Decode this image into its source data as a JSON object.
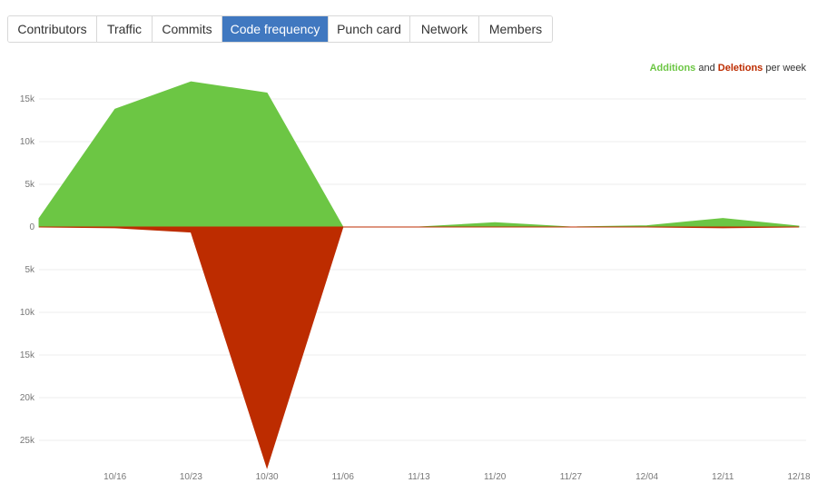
{
  "tabs": [
    {
      "label": "Contributors",
      "active": false
    },
    {
      "label": "Traffic",
      "active": false
    },
    {
      "label": "Commits",
      "active": false
    },
    {
      "label": "Code frequency",
      "active": true
    },
    {
      "label": "Punch card",
      "active": false
    },
    {
      "label": "Network",
      "active": false
    },
    {
      "label": "Members",
      "active": false
    }
  ],
  "legend": {
    "additions": "Additions",
    "and": "and",
    "deletions": "Deletions",
    "suffix": "per week"
  },
  "colors": {
    "additions": "#6cc644",
    "deletions": "#bd2c00",
    "active_tab": "#4078c0"
  },
  "chart_data": {
    "type": "area",
    "title": "",
    "xlabel": "",
    "ylabel": "",
    "x_ticks": [
      "10/16",
      "10/23",
      "10/30",
      "11/06",
      "11/13",
      "11/20",
      "11/27",
      "12/04",
      "12/11",
      "12/18"
    ],
    "y_ticks_positive": [
      "15k",
      "10k",
      "5k",
      "0"
    ],
    "y_ticks_negative": [
      "5k",
      "10k",
      "15k",
      "20k",
      "25k"
    ],
    "ylim": [
      -28000,
      15000
    ],
    "grid": true,
    "legend_position": "top-right",
    "series": [
      {
        "name": "Additions",
        "x": [
          "10/09",
          "10/16",
          "10/23",
          "10/30",
          "11/06",
          "11/13",
          "11/20",
          "11/27",
          "12/04",
          "12/11",
          "12/18"
        ],
        "values": [
          1000,
          13800,
          17000,
          15700,
          0,
          0,
          500,
          0,
          150,
          1000,
          100
        ]
      },
      {
        "name": "Deletions",
        "x": [
          "10/09",
          "10/16",
          "10/23",
          "10/30",
          "11/06",
          "11/13",
          "11/20",
          "11/27",
          "12/04",
          "12/11",
          "12/18"
        ],
        "values": [
          0,
          -100,
          -600,
          -28200,
          0,
          0,
          0,
          0,
          0,
          -100,
          0
        ]
      }
    ]
  }
}
